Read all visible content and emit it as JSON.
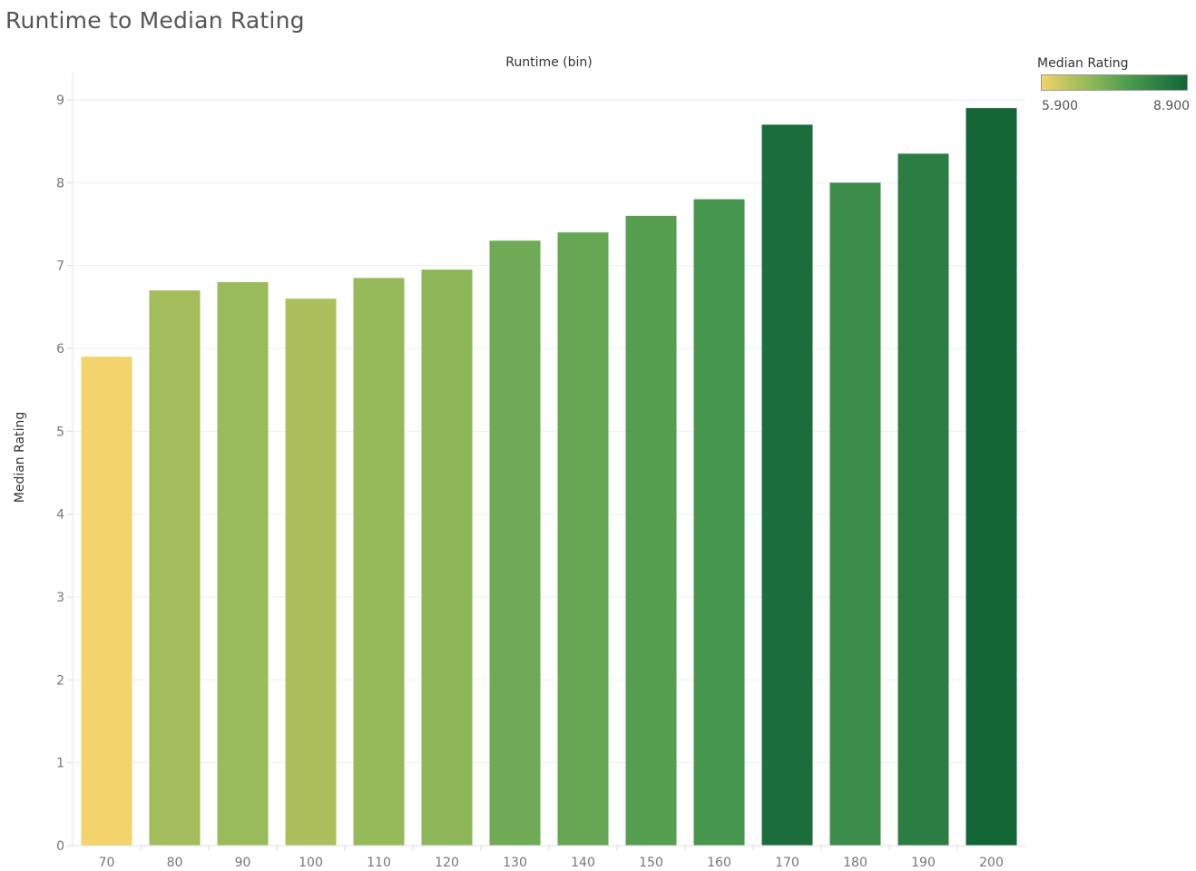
{
  "title": "Runtime to Median Rating",
  "legend": {
    "title": "Median Rating",
    "min_label": "5.900",
    "max_label": "8.900",
    "min_value": 5.9,
    "max_value": 8.9,
    "gradient_colors": [
      "#f3d36b",
      "#b4c35e",
      "#80b257",
      "#4c9a4f",
      "#2d7f45",
      "#126636"
    ]
  },
  "chart_data": {
    "type": "bar",
    "title": "Runtime to Median Rating",
    "xlabel": "Runtime (bin)",
    "ylabel": "Median Rating",
    "ylim": [
      0,
      9
    ],
    "y_ticks": [
      0,
      1,
      2,
      3,
      4,
      5,
      6,
      7,
      8,
      9
    ],
    "categories": [
      "70",
      "80",
      "90",
      "100",
      "110",
      "120",
      "130",
      "140",
      "150",
      "160",
      "170",
      "180",
      "190",
      "200"
    ],
    "values": [
      5.9,
      6.7,
      6.8,
      6.6,
      6.85,
      6.95,
      7.3,
      7.4,
      7.6,
      7.8,
      8.7,
      8.0,
      8.35,
      8.9
    ],
    "grid": true,
    "legend_position": "top-right"
  }
}
